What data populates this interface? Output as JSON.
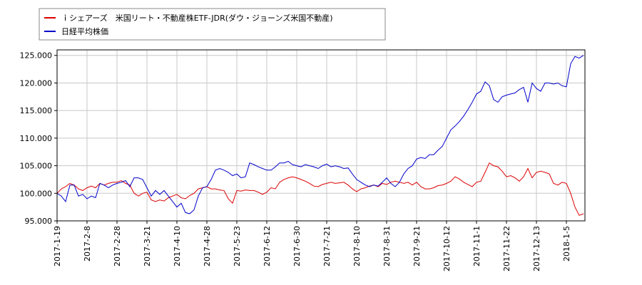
{
  "chart_data": {
    "type": "line",
    "categories": [
      "2017-1-19",
      null,
      null,
      null,
      null,
      null,
      null,
      "2017-2-8",
      null,
      null,
      null,
      null,
      null,
      null,
      "2017-2-28",
      null,
      null,
      null,
      null,
      null,
      null,
      "2017-3-21",
      null,
      null,
      null,
      null,
      null,
      null,
      "2017-4-10",
      null,
      null,
      null,
      null,
      null,
      null,
      "2017-4-28",
      null,
      null,
      null,
      null,
      null,
      null,
      "2017-5-23",
      null,
      null,
      null,
      null,
      null,
      null,
      "2017-6-12",
      null,
      null,
      null,
      null,
      null,
      null,
      "2017-6-30",
      null,
      null,
      null,
      null,
      null,
      null,
      "2017-7-21",
      null,
      null,
      null,
      null,
      null,
      null,
      "2017-8-10",
      null,
      null,
      null,
      null,
      null,
      null,
      "2017-8-31",
      null,
      null,
      null,
      null,
      null,
      null,
      "2017-9-21",
      null,
      null,
      null,
      null,
      null,
      null,
      "2017-10-12",
      null,
      null,
      null,
      null,
      null,
      null,
      "2017-11-1",
      null,
      null,
      null,
      null,
      null,
      null,
      "2017-11-22",
      null,
      null,
      null,
      null,
      null,
      null,
      "2017-12-13",
      null,
      null,
      null,
      null,
      null,
      null,
      "2018-1-5",
      null,
      null,
      null,
      null
    ],
    "series": [
      {
        "name": "ｉシェアーズ　米国リート・不動産株ETF-JDR(ダウ・ジョーンズ米国不動産)",
        "color": "#dd0000",
        "values": [
          100000,
          100800,
          101200,
          101800,
          101500,
          100800,
          100500,
          101000,
          101300,
          101000,
          101800,
          101500,
          101800,
          102000,
          102000,
          102300,
          101800,
          101500,
          100000,
          99500,
          100000,
          100200,
          98800,
          98500,
          98800,
          98600,
          99200,
          99500,
          99800,
          99200,
          99000,
          99600,
          100000,
          100800,
          101000,
          101200,
          100800,
          100800,
          100600,
          100500,
          99000,
          98200,
          100500,
          100400,
          100600,
          100500,
          100500,
          100200,
          99800,
          100200,
          101000,
          100800,
          102000,
          102500,
          102800,
          103000,
          102800,
          102500,
          102200,
          101800,
          101300,
          101200,
          101600,
          101800,
          102000,
          101800,
          101900,
          102000,
          101500,
          100800,
          100300,
          100800,
          101000,
          101300,
          101500,
          101200,
          101800,
          101600,
          102000,
          102200,
          102000,
          101800,
          102000,
          101500,
          102000,
          101200,
          100800,
          100800,
          101000,
          101400,
          101500,
          101800,
          102200,
          103000,
          102600,
          102000,
          101600,
          101200,
          102000,
          102200,
          103800,
          105500,
          105000,
          104800,
          104000,
          103000,
          103200,
          102800,
          102200,
          103000,
          104500,
          102800,
          103800,
          104000,
          103800,
          103500,
          101800,
          101500,
          102000,
          101800,
          100000,
          97500,
          96000,
          96300
        ]
      },
      {
        "name": "日経平均株価",
        "color": "#0000cc",
        "values": [
          100000,
          99500,
          98500,
          101500,
          101500,
          99500,
          99800,
          99000,
          99500,
          99200,
          101800,
          101500,
          101000,
          101500,
          101800,
          102000,
          102300,
          101200,
          102800,
          102800,
          102500,
          101000,
          99500,
          100500,
          99800,
          100500,
          99500,
          98500,
          97500,
          98200,
          96500,
          96300,
          97000,
          99500,
          101000,
          101200,
          102500,
          104200,
          104500,
          104200,
          103800,
          103200,
          103500,
          102800,
          103000,
          105500,
          105200,
          104800,
          104500,
          104200,
          104200,
          104800,
          105500,
          105500,
          105800,
          105200,
          105000,
          104800,
          105200,
          105000,
          104800,
          104500,
          105000,
          105300,
          104800,
          105000,
          104800,
          104500,
          104600,
          103500,
          102500,
          102000,
          101500,
          101200,
          101500,
          101300,
          102000,
          102800,
          101800,
          101200,
          102000,
          103500,
          104500,
          105000,
          106200,
          106500,
          106300,
          107000,
          107000,
          107800,
          108500,
          110000,
          111500,
          112200,
          113000,
          114000,
          115200,
          116500,
          118000,
          118500,
          120200,
          119500,
          117000,
          116500,
          117500,
          117800,
          118000,
          118200,
          118800,
          119200,
          116500,
          120000,
          119000,
          118500,
          120000,
          120000,
          119800,
          120000,
          119500,
          119300,
          123500,
          124800,
          124500,
          125000
        ]
      }
    ],
    "ylim": [
      95000,
      126000
    ],
    "yticks": [
      {
        "value": 95000,
        "label": "95.000"
      },
      {
        "value": 100000,
        "label": "100.000"
      },
      {
        "value": 105000,
        "label": "105.000"
      },
      {
        "value": 110000,
        "label": "110.000"
      },
      {
        "value": 115000,
        "label": "115.000"
      },
      {
        "value": 120000,
        "label": "120.000"
      },
      {
        "value": 125000,
        "label": "125.000"
      }
    ],
    "grid": true
  }
}
